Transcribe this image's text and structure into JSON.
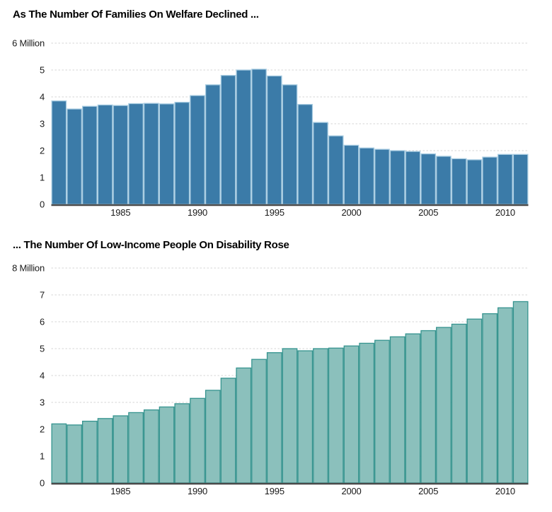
{
  "page": {
    "background": "#ffffff"
  },
  "chart_data": [
    {
      "type": "bar",
      "title": "As The Number Of Families On Welfare Declined ...",
      "xlabel": "",
      "ylabel": "",
      "ylim": [
        0,
        6
      ],
      "y_tick_labels": [
        "0",
        "1",
        "2",
        "3",
        "4",
        "5",
        "6 Million"
      ],
      "x_tick_labels": [
        "1985",
        "1990",
        "1995",
        "2000",
        "2005",
        "2010"
      ],
      "grid": "dotted horizontal",
      "legend": "none",
      "categories": [
        1981,
        1982,
        1983,
        1984,
        1985,
        1986,
        1987,
        1988,
        1989,
        1990,
        1991,
        1992,
        1993,
        1994,
        1995,
        1996,
        1997,
        1998,
        1999,
        2000,
        2001,
        2002,
        2003,
        2004,
        2005,
        2006,
        2007,
        2008,
        2009,
        2010,
        2011
      ],
      "values": [
        3.85,
        3.55,
        3.65,
        3.7,
        3.68,
        3.75,
        3.76,
        3.74,
        3.8,
        4.05,
        4.45,
        4.8,
        5.0,
        5.03,
        4.78,
        4.45,
        3.72,
        3.05,
        2.55,
        2.2,
        2.1,
        2.05,
        2.0,
        1.97,
        1.88,
        1.79,
        1.7,
        1.66,
        1.76,
        1.86,
        1.86
      ],
      "bar_fill": "#3B7BA8",
      "bar_stroke": "#A9CDE2",
      "grid_color": "#D4D4D4",
      "axis_color": "#4A4A4A",
      "label_color": "#1A1A1A"
    },
    {
      "type": "bar",
      "title": "... The Number Of Low-Income People On Disability Rose",
      "xlabel": "",
      "ylabel": "",
      "ylim": [
        0,
        8
      ],
      "y_tick_labels": [
        "0",
        "1",
        "2",
        "3",
        "4",
        "5",
        "6",
        "7",
        "8 Million"
      ],
      "x_tick_labels": [
        "1985",
        "1990",
        "1995",
        "2000",
        "2005",
        "2010"
      ],
      "grid": "dotted horizontal",
      "legend": "none",
      "categories": [
        1981,
        1982,
        1983,
        1984,
        1985,
        1986,
        1987,
        1988,
        1989,
        1990,
        1991,
        1992,
        1993,
        1994,
        1995,
        1996,
        1997,
        1998,
        1999,
        2000,
        2001,
        2002,
        2003,
        2004,
        2005,
        2006,
        2007,
        2008,
        2009,
        2010,
        2011
      ],
      "values": [
        2.2,
        2.16,
        2.3,
        2.4,
        2.5,
        2.62,
        2.72,
        2.83,
        2.95,
        3.15,
        3.45,
        3.9,
        4.28,
        4.6,
        4.85,
        5.0,
        4.92,
        5.0,
        5.02,
        5.1,
        5.2,
        5.31,
        5.44,
        5.55,
        5.67,
        5.79,
        5.91,
        6.1,
        6.3,
        6.52,
        6.75
      ],
      "bar_fill": "#8BC0BC",
      "bar_stroke": "#36948F",
      "grid_color": "#D4D4D4",
      "axis_color": "#4A4A4A",
      "label_color": "#1A1A1A"
    }
  ]
}
